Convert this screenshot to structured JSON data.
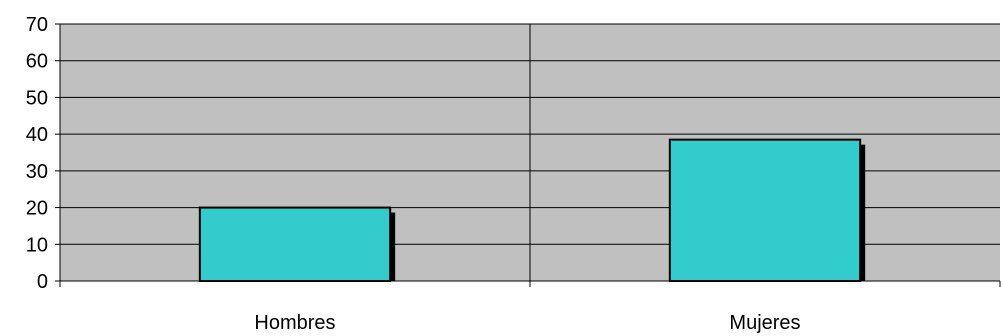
{
  "chart_data": {
    "type": "bar",
    "categories": [
      "Hombres",
      "Mujeres"
    ],
    "values": [
      20,
      38.5
    ],
    "title": "",
    "xlabel": "",
    "ylabel": "",
    "ylim": [
      0,
      70
    ],
    "yticks": [
      "0",
      "10",
      "20",
      "30",
      "40",
      "50",
      "60",
      "70"
    ],
    "grid": true,
    "legend": "none",
    "colors": {
      "plot_background": "#c0c0c0",
      "bar_fill": "#33cccc",
      "bar_stroke": "#000000",
      "bar_shadow": "#000000",
      "gridline": "#000000"
    }
  }
}
